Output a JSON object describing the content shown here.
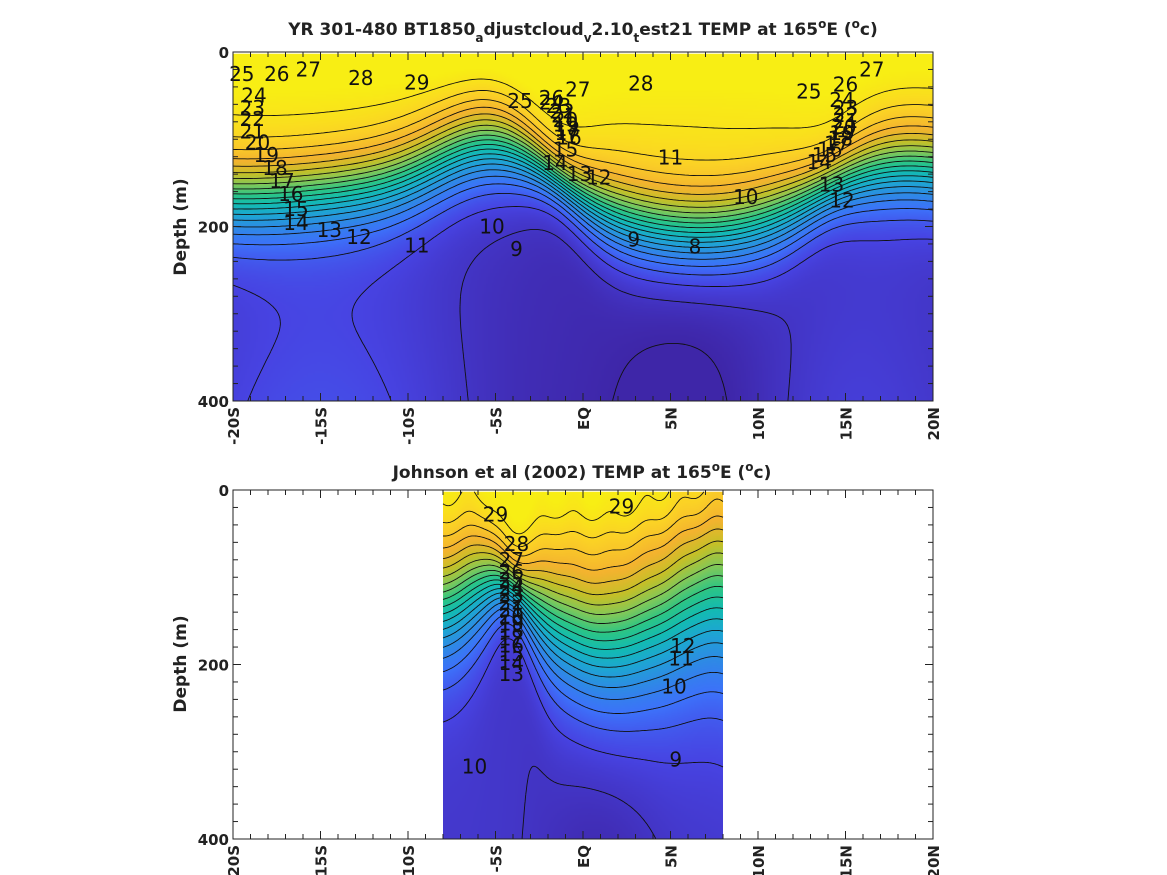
{
  "figure": {
    "colormap": [
      "#3e26a8",
      "#4743e2",
      "#3d71fa",
      "#2d8ce4",
      "#1da7d2",
      "#13bbb2",
      "#2cc585",
      "#7fc85a",
      "#c5c028",
      "#f4b32f",
      "#fbd126",
      "#f8ee14"
    ]
  },
  "chart_data": [
    {
      "type": "heatmap",
      "subtype": "filled-contour section",
      "title_parts": [
        "YR 301-480 BT1850",
        "a",
        "djustcloud",
        "v",
        "2.10",
        "t",
        "est21 TEMP at 165",
        "o",
        "E (",
        "o",
        "c)"
      ],
      "ylabel": "Depth (m)",
      "xlabel": "",
      "x_tick_labels": [
        "-20S",
        "-15S",
        "-10S",
        "-5S",
        "EQ",
        "5N",
        "10N",
        "15N",
        "20N"
      ],
      "x_ticks": [
        -20,
        -15,
        -10,
        -5,
        0,
        5,
        10,
        15,
        20
      ],
      "y_tick_labels": [
        "0",
        "200",
        "400"
      ],
      "y_ticks": [
        0,
        200,
        400
      ],
      "xlim": [
        -20,
        20
      ],
      "ylim": [
        0,
        400
      ],
      "y_reversed": true,
      "data_x_range": [
        -20,
        20
      ],
      "contour_levels": [
        8,
        9,
        10,
        11,
        12,
        13,
        14,
        15,
        16,
        17,
        18,
        19,
        20,
        21,
        22,
        23,
        24,
        25,
        26,
        27,
        28,
        29
      ],
      "contour_labels": [
        {
          "t": "29",
          "x": -9.5,
          "y": 35
        },
        {
          "t": "28",
          "x": -12.7,
          "y": 30
        },
        {
          "t": "27",
          "x": -15.7,
          "y": 20
        },
        {
          "t": "26",
          "x": -17.5,
          "y": 25
        },
        {
          "t": "25",
          "x": -19.5,
          "y": 25
        },
        {
          "t": "24",
          "x": -18.8,
          "y": 50
        },
        {
          "t": "23",
          "x": -18.9,
          "y": 64
        },
        {
          "t": "22",
          "x": -18.9,
          "y": 77
        },
        {
          "t": "21",
          "x": -18.9,
          "y": 91
        },
        {
          "t": "20",
          "x": -18.6,
          "y": 104
        },
        {
          "t": "19",
          "x": -18.1,
          "y": 118
        },
        {
          "t": "18",
          "x": -17.6,
          "y": 133
        },
        {
          "t": "17",
          "x": -17.2,
          "y": 148
        },
        {
          "t": "16",
          "x": -16.7,
          "y": 163
        },
        {
          "t": "15",
          "x": -16.4,
          "y": 180
        },
        {
          "t": "14",
          "x": -16.4,
          "y": 196
        },
        {
          "t": "13",
          "x": -14.5,
          "y": 204
        },
        {
          "t": "12",
          "x": -12.8,
          "y": 212
        },
        {
          "t": "11",
          "x": -9.5,
          "y": 222
        },
        {
          "t": "10",
          "x": -5.2,
          "y": 200
        },
        {
          "t": "9",
          "x": -3.8,
          "y": 226
        },
        {
          "t": "9",
          "x": 2.9,
          "y": 215
        },
        {
          "t": "8",
          "x": 6.4,
          "y": 223
        },
        {
          "t": "10",
          "x": 9.3,
          "y": 166
        },
        {
          "t": "11",
          "x": 5.0,
          "y": 121
        },
        {
          "t": "12",
          "x": 0.9,
          "y": 144
        },
        {
          "t": "13",
          "x": -0.2,
          "y": 140
        },
        {
          "t": "14",
          "x": -1.6,
          "y": 127
        },
        {
          "t": "15",
          "x": -1.0,
          "y": 112
        },
        {
          "t": "16",
          "x": -0.8,
          "y": 98
        },
        {
          "t": "17",
          "x": -0.9,
          "y": 93
        },
        {
          "t": "18",
          "x": -0.9,
          "y": 88
        },
        {
          "t": "19",
          "x": -1.0,
          "y": 83
        },
        {
          "t": "20",
          "x": -1.0,
          "y": 78
        },
        {
          "t": "21",
          "x": -1.1,
          "y": 73
        },
        {
          "t": "22",
          "x": -1.2,
          "y": 68
        },
        {
          "t": "23",
          "x": -1.4,
          "y": 62
        },
        {
          "t": "24",
          "x": -1.8,
          "y": 58
        },
        {
          "t": "26",
          "x": -1.8,
          "y": 53
        },
        {
          "t": "25",
          "x": -3.6,
          "y": 56
        },
        {
          "t": "27",
          "x": -0.3,
          "y": 43
        },
        {
          "t": "28",
          "x": 3.3,
          "y": 36
        },
        {
          "t": "25",
          "x": 12.9,
          "y": 45
        },
        {
          "t": "26",
          "x": 15.0,
          "y": 37
        },
        {
          "t": "27",
          "x": 16.5,
          "y": 20
        },
        {
          "t": "24",
          "x": 14.8,
          "y": 55
        },
        {
          "t": "23",
          "x": 15.0,
          "y": 64
        },
        {
          "t": "22",
          "x": 15.0,
          "y": 72
        },
        {
          "t": "21",
          "x": 15.0,
          "y": 79
        },
        {
          "t": "20",
          "x": 14.9,
          "y": 86
        },
        {
          "t": "19",
          "x": 14.8,
          "y": 93
        },
        {
          "t": "18",
          "x": 14.7,
          "y": 99
        },
        {
          "t": "17",
          "x": 14.5,
          "y": 105
        },
        {
          "t": "16",
          "x": 14.1,
          "y": 112
        },
        {
          "t": "15",
          "x": 13.8,
          "y": 118
        },
        {
          "t": "14",
          "x": 13.5,
          "y": 126
        },
        {
          "t": "13",
          "x": 14.2,
          "y": 152
        },
        {
          "t": "12",
          "x": 14.8,
          "y": 170
        }
      ]
    },
    {
      "type": "heatmap",
      "subtype": "filled-contour section",
      "title_parts": [
        "Johnson et al (2002) TEMP at 165",
        "o",
        "E (",
        "o",
        "c)"
      ],
      "ylabel": "Depth (m)",
      "xlabel": "",
      "x_tick_labels": [
        "-20S",
        "-15S",
        "-10S",
        "-5S",
        "EQ",
        "5N",
        "10N",
        "15N",
        "20N"
      ],
      "x_ticks": [
        -20,
        -15,
        -10,
        -5,
        0,
        5,
        10,
        15,
        20
      ],
      "y_tick_labels": [
        "0",
        "200",
        "400"
      ],
      "y_ticks": [
        0,
        200,
        400
      ],
      "xlim": [
        -20,
        20
      ],
      "ylim": [
        0,
        400
      ],
      "y_reversed": true,
      "data_x_range": [
        -8,
        8
      ],
      "contour_levels": [
        9,
        10,
        11,
        12,
        13,
        14,
        15,
        16,
        17,
        18,
        19,
        20,
        21,
        22,
        23,
        24,
        25,
        26,
        27,
        28,
        29
      ],
      "contour_labels": [
        {
          "t": "29",
          "x": -5.0,
          "y": 28
        },
        {
          "t": "29",
          "x": 2.2,
          "y": 19
        },
        {
          "t": "28",
          "x": -3.8,
          "y": 62
        },
        {
          "t": "27",
          "x": -4.1,
          "y": 80
        },
        {
          "t": "26",
          "x": -4.1,
          "y": 94
        },
        {
          "t": "25",
          "x": -4.1,
          "y": 103
        },
        {
          "t": "24",
          "x": -4.1,
          "y": 112
        },
        {
          "t": "23",
          "x": -4.1,
          "y": 120
        },
        {
          "t": "22",
          "x": -4.1,
          "y": 129
        },
        {
          "t": "21",
          "x": -4.1,
          "y": 137
        },
        {
          "t": "20",
          "x": -4.1,
          "y": 145
        },
        {
          "t": "19",
          "x": -4.1,
          "y": 153
        },
        {
          "t": "18",
          "x": -4.1,
          "y": 161
        },
        {
          "t": "17",
          "x": -4.1,
          "y": 170
        },
        {
          "t": "16",
          "x": -4.1,
          "y": 178
        },
        {
          "t": "15",
          "x": -4.1,
          "y": 188
        },
        {
          "t": "14",
          "x": -4.1,
          "y": 198
        },
        {
          "t": "13",
          "x": -4.1,
          "y": 211
        },
        {
          "t": "12",
          "x": 5.7,
          "y": 179
        },
        {
          "t": "11",
          "x": 5.6,
          "y": 193
        },
        {
          "t": "10",
          "x": 5.2,
          "y": 225
        },
        {
          "t": "10",
          "x": -6.2,
          "y": 317
        },
        {
          "t": "9",
          "x": 5.3,
          "y": 309
        }
      ]
    }
  ]
}
